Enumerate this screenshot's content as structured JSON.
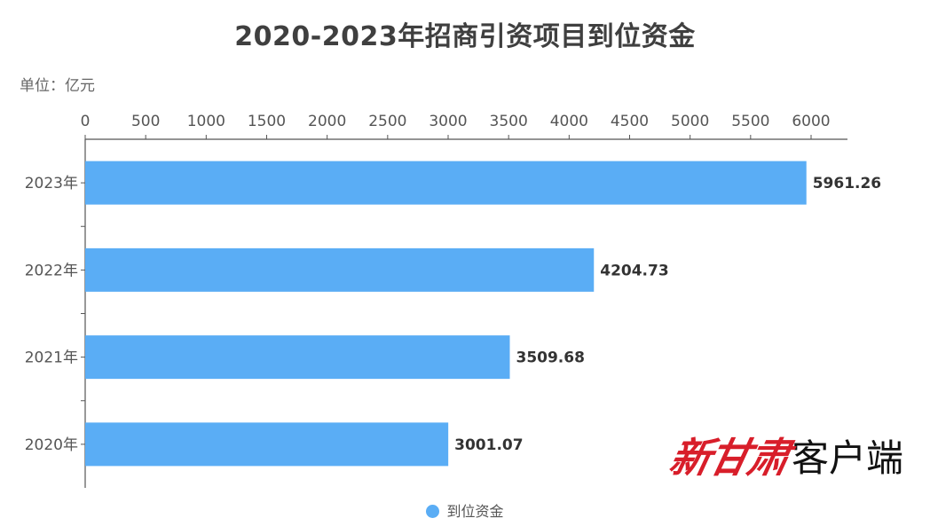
{
  "chart_data": {
    "type": "bar",
    "orientation": "horizontal",
    "title": "2020-2023年招商引资项目到位资金",
    "unit_label": "单位：亿元",
    "categories": [
      "2023年",
      "2022年",
      "2021年",
      "2020年"
    ],
    "series": [
      {
        "name": "到位资金",
        "values": [
          5961.26,
          4204.73,
          3509.68,
          3001.07
        ],
        "value_labels": [
          "5961.26",
          "4204.73",
          "3509.68",
          "3001.07"
        ],
        "color": "#5aadf5"
      }
    ],
    "xlim": [
      0,
      6000
    ],
    "xticks": [
      "0",
      "500",
      "1000",
      "1500",
      "2000",
      "2500",
      "3000",
      "3500",
      "4000",
      "4500",
      "5000",
      "5500",
      "6000"
    ],
    "x_axis_position": "top",
    "grid": false,
    "legend_position": "bottom"
  },
  "watermark": {
    "brand": "新甘肃",
    "suffix": "客户端",
    "brand_color": "#d81e2a"
  }
}
